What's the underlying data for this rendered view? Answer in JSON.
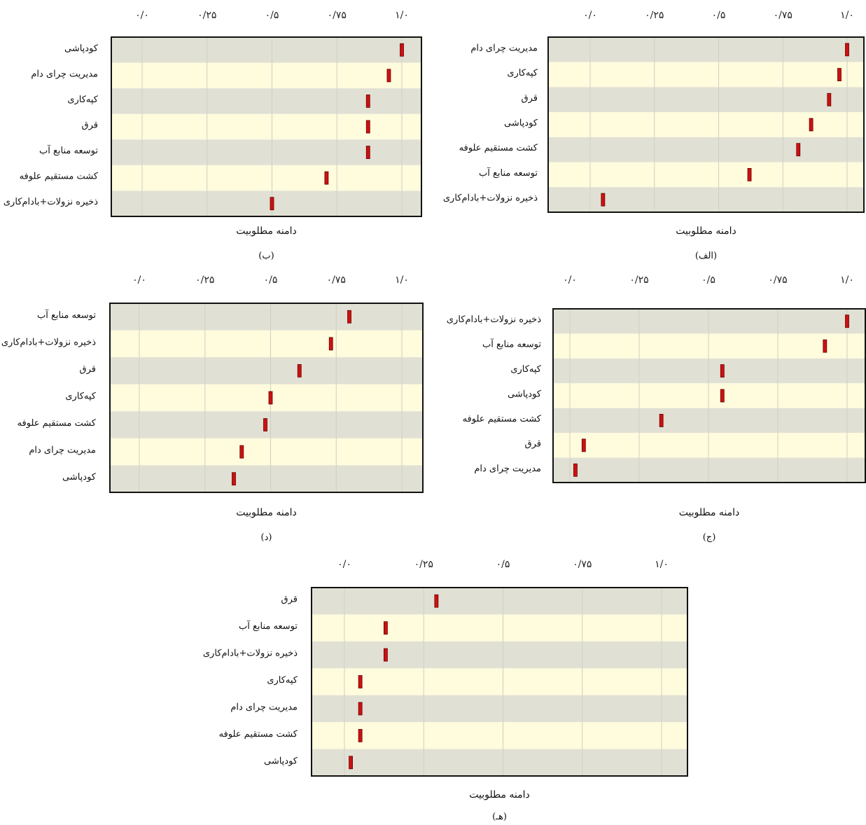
{
  "chart_data": [
    {
      "type": "scatter",
      "panel_label": "(الف)",
      "xlabel": "دامنه مطلوبیت",
      "xlim": [
        0,
        1
      ],
      "x_ticks": [
        "۰/۰",
        "۰/۲۵",
        "۰/۵",
        "۰/۷۵",
        "۱/۰"
      ],
      "categories": [
        "مدیریت چرای دام",
        "کپه‌کاری",
        "قرق",
        "کودپاشی",
        "کشت مستقیم علوفه",
        "توسعه منابع آب",
        "ذخیره نزولات+بادام‌کاری"
      ],
      "values": [
        1.0,
        0.97,
        0.93,
        0.86,
        0.81,
        0.62,
        0.05
      ]
    },
    {
      "type": "scatter",
      "panel_label": "(ب)",
      "xlabel": "دامنه مطلوبیت",
      "xlim": [
        0,
        1
      ],
      "x_ticks": [
        "۰/۰",
        "۰/۲۵",
        "۰/۵",
        "۰/۷۵",
        "۱/۰"
      ],
      "categories": [
        "کودپاشی",
        "مدیریت چرای دام",
        "کپه‌کاری",
        "قرق",
        "توسعه منابع آب",
        "کشت مستقیم علوفه",
        "ذخیره نزولات+بادام‌کاری"
      ],
      "values": [
        1.0,
        0.95,
        0.87,
        0.87,
        0.87,
        0.71,
        0.5
      ]
    },
    {
      "type": "scatter",
      "panel_label": "(ج)",
      "xlabel": "دامنه مطلوبیت",
      "xlim": [
        0,
        1
      ],
      "x_ticks": [
        "۰/۰",
        "۰/۲۵",
        "۰/۵",
        "۰/۷۵",
        "۱/۰"
      ],
      "categories": [
        "ذخیره نزولات+بادام‌کاری",
        "توسعه منابع آب",
        "کپه‌کاری",
        "کودپاشی",
        "کشت مستقیم علوفه",
        "قرق",
        "مدیریت چرای دام"
      ],
      "values": [
        1.0,
        0.92,
        0.55,
        0.55,
        0.33,
        0.05,
        0.02
      ]
    },
    {
      "type": "scatter",
      "panel_label": "(د)",
      "xlabel": "دامنه مطلوبیت",
      "xlim": [
        0,
        1
      ],
      "x_ticks": [
        "۰/۰",
        "۰/۲۵",
        "۰/۵",
        "۰/۷۵",
        "۱/۰"
      ],
      "categories": [
        "توسعه منابع آب",
        "ذخیره نزولات+بادام‌کاری",
        "قرق",
        "کپه‌کاری",
        "کشت مستقیم علوفه",
        "مدیریت چرای دام",
        "کودپاشی"
      ],
      "values": [
        0.8,
        0.73,
        0.61,
        0.5,
        0.48,
        0.39,
        0.36
      ]
    },
    {
      "type": "scatter",
      "panel_label": "(هـ)",
      "xlabel": "دامنه مطلوبیت",
      "xlim": [
        0,
        1
      ],
      "x_ticks": [
        "۰/۰",
        "۰/۲۵",
        "۰/۵",
        "۰/۷۵",
        "۱/۰"
      ],
      "categories": [
        "قرق",
        "توسعه منابع آب",
        "ذخیره نزولات+بادام‌کاری",
        "کپه‌کاری",
        "مدیریت چرای دام",
        "کشت مستقیم علوفه",
        "کودپاشی"
      ],
      "values": [
        0.29,
        0.13,
        0.13,
        0.05,
        0.05,
        0.05,
        0.02
      ]
    }
  ]
}
